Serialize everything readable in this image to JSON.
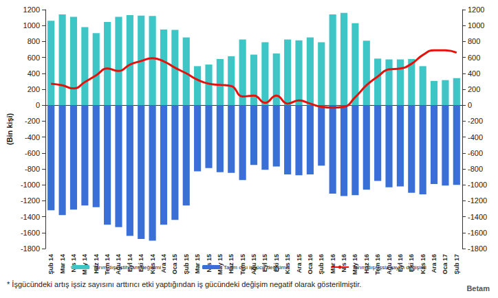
{
  "chart_data": {
    "type": "bar",
    "y_label": "(Bin kişi)",
    "categories": [
      "Şub 14",
      "Mar 14",
      "Nis 14",
      "May 14",
      "Haz 14",
      "Tem 14",
      "Ağu 14",
      "Eyl 14",
      "Eki 14",
      "Kas 14",
      "Ara 14",
      "Oca 15",
      "Şub 15",
      "Mar 15",
      "Nis 15",
      "May 15",
      "Haz 15",
      "Tem 15",
      "Ağu 15",
      "Eyl 15",
      "Eki 15",
      "Kas 15",
      "Ara 15",
      "Oca 16",
      "Şub 16",
      "Mar 16",
      "Nis 16",
      "May 16",
      "Haz 16",
      "Tem 16",
      "Ağu 16",
      "Eyl 16",
      "Eki 16",
      "Kas 16",
      "Ara 16",
      "Oca 17",
      "Şub 17"
    ],
    "series": [
      {
        "name": "Tarım dışı istihdam değişimi",
        "type": "bar",
        "color": "#3ec6c6",
        "values": [
          1060,
          1140,
          1110,
          980,
          905,
          1045,
          1110,
          1130,
          1125,
          1120,
          950,
          945,
          850,
          490,
          510,
          580,
          615,
          825,
          635,
          790,
          650,
          825,
          815,
          850,
          790,
          1140,
          1160,
          1030,
          810,
          585,
          575,
          575,
          580,
          490,
          305,
          315,
          340
        ]
      },
      {
        "name": "Tarım dışı işgücü değişimi*",
        "type": "bar",
        "color": "#3a6fd8",
        "values": [
          -1320,
          -1380,
          -1310,
          -1260,
          -1280,
          -1500,
          -1530,
          -1640,
          -1680,
          -1700,
          -1500,
          -1440,
          -1260,
          -830,
          -790,
          -840,
          -850,
          -940,
          -750,
          -810,
          -770,
          -870,
          -880,
          -870,
          -760,
          -1110,
          -1140,
          -1130,
          -1060,
          -950,
          -1030,
          -1020,
          -1100,
          -1120,
          -990,
          -1010,
          -1000
        ]
      },
      {
        "name": "Tarım dışı işsiz sayısı değişimi",
        "type": "line",
        "color": "#e3120b",
        "axis": "y2",
        "values": [
          270,
          250,
          210,
          290,
          375,
          460,
          430,
          510,
          555,
          590,
          550,
          470,
          400,
          320,
          270,
          255,
          240,
          110,
          120,
          30,
          120,
          20,
          60,
          20,
          -20,
          -30,
          -20,
          100,
          250,
          360,
          450,
          460,
          520,
          630,
          690,
          690,
          660
        ]
      }
    ],
    "ylim": [
      -1800,
      1200
    ],
    "yticks": [
      -1800,
      -1600,
      -1400,
      -1200,
      -1000,
      -800,
      -600,
      -400,
      -200,
      0,
      200,
      400,
      600,
      800,
      1000,
      1200
    ],
    "y2lim": [
      -1800,
      1200
    ],
    "y2ticks": [
      -1800,
      -1600,
      -1400,
      -1200,
      -1000,
      -800,
      -600,
      -400,
      -200,
      0,
      200,
      400,
      600,
      800,
      1000,
      1200
    ],
    "stacked": true,
    "grid": false,
    "legend": "bottom",
    "annotations": [
      "* İşgücündeki artış işsiz sayısını arttırıcı etki yaptığından iş gücündeki değişim negatif olarak gösterilmiştir.",
      "Betam"
    ]
  }
}
